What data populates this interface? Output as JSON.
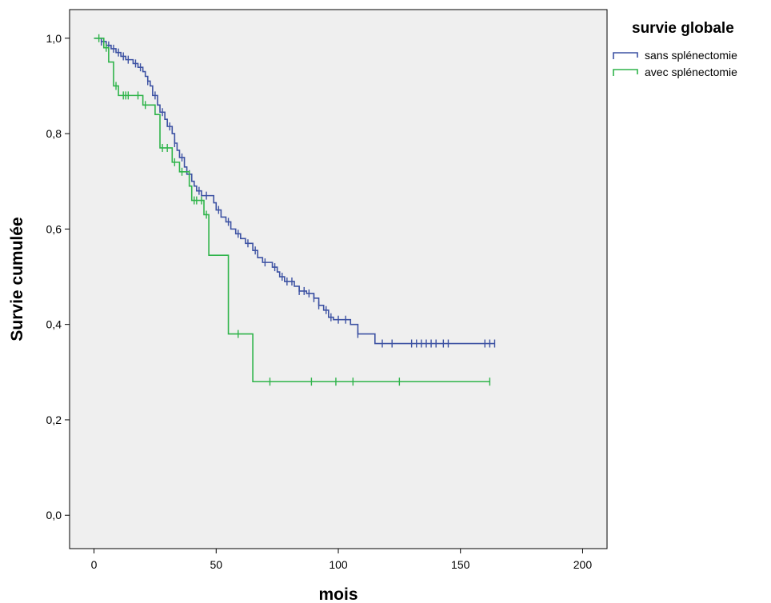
{
  "chart_data": {
    "type": "line",
    "title": "",
    "xlabel": "mois",
    "ylabel": "Survie cumulée",
    "xlim": [
      -10,
      210
    ],
    "ylim": [
      -0.07,
      1.06
    ],
    "x_ticks": [
      0,
      50,
      100,
      150,
      200
    ],
    "x_tick_labels": [
      "0",
      "50",
      "100",
      "150",
      "200"
    ],
    "y_ticks": [
      0.0,
      0.2,
      0.4,
      0.6,
      0.8,
      1.0
    ],
    "y_tick_labels": [
      "0,0",
      "0,2",
      "0,4",
      "0,6",
      "0,8",
      "1,0"
    ],
    "grid": false,
    "background": "#efefef",
    "legend": {
      "title": "survie globale",
      "position": "top-right, outside plot"
    },
    "series": [
      {
        "name": "sans splénectomie",
        "color": "#3d52a3",
        "steps": [
          [
            0,
            1.0
          ],
          [
            3,
            0.993
          ],
          [
            5,
            0.985
          ],
          [
            7,
            0.978
          ],
          [
            9,
            0.97
          ],
          [
            11,
            0.962
          ],
          [
            13,
            0.955
          ],
          [
            16,
            0.947
          ],
          [
            18,
            0.939
          ],
          [
            20,
            0.93
          ],
          [
            21,
            0.92
          ],
          [
            22,
            0.91
          ],
          [
            23,
            0.9
          ],
          [
            24,
            0.88
          ],
          [
            26,
            0.86
          ],
          [
            27,
            0.845
          ],
          [
            29,
            0.83
          ],
          [
            30,
            0.815
          ],
          [
            32,
            0.8
          ],
          [
            33,
            0.78
          ],
          [
            34,
            0.765
          ],
          [
            35,
            0.75
          ],
          [
            37,
            0.73
          ],
          [
            38,
            0.715
          ],
          [
            40,
            0.7
          ],
          [
            41,
            0.69
          ],
          [
            42,
            0.68
          ],
          [
            44,
            0.67
          ],
          [
            49,
            0.655
          ],
          [
            50,
            0.64
          ],
          [
            52,
            0.625
          ],
          [
            54,
            0.615
          ],
          [
            56,
            0.6
          ],
          [
            58,
            0.59
          ],
          [
            60,
            0.58
          ],
          [
            62,
            0.57
          ],
          [
            65,
            0.555
          ],
          [
            67,
            0.54
          ],
          [
            69,
            0.53
          ],
          [
            73,
            0.52
          ],
          [
            75,
            0.51
          ],
          [
            76,
            0.5
          ],
          [
            78,
            0.49
          ],
          [
            82,
            0.48
          ],
          [
            84,
            0.47
          ],
          [
            87,
            0.465
          ],
          [
            90,
            0.455
          ],
          [
            92,
            0.44
          ],
          [
            94,
            0.43
          ],
          [
            96,
            0.415
          ],
          [
            98,
            0.41
          ],
          [
            105,
            0.4
          ],
          [
            108,
            0.38
          ],
          [
            115,
            0.36
          ],
          [
            164,
            0.36
          ]
        ],
        "censored_x": [
          3,
          6,
          8,
          10,
          12,
          14,
          17,
          19,
          22,
          25,
          28,
          31,
          33,
          36,
          39,
          43,
          46,
          51,
          55,
          59,
          63,
          66,
          70,
          74,
          77,
          79,
          81,
          84,
          86,
          88,
          90,
          92,
          95,
          97,
          100,
          103,
          108,
          118,
          122,
          130,
          132,
          134,
          136,
          138,
          140,
          143,
          145,
          160,
          162,
          164
        ]
      },
      {
        "name": "avec splénectomie",
        "color": "#2fb44a",
        "steps": [
          [
            0,
            1.0
          ],
          [
            4,
            0.98
          ],
          [
            6,
            0.95
          ],
          [
            8,
            0.9
          ],
          [
            10,
            0.88
          ],
          [
            20,
            0.86
          ],
          [
            25,
            0.84
          ],
          [
            27,
            0.77
          ],
          [
            32,
            0.74
          ],
          [
            35,
            0.72
          ],
          [
            39,
            0.69
          ],
          [
            40,
            0.66
          ],
          [
            45,
            0.63
          ],
          [
            47,
            0.545
          ],
          [
            55,
            0.38
          ],
          [
            65,
            0.28
          ],
          [
            162,
            0.28
          ]
        ],
        "censored_x": [
          2,
          5,
          9,
          12,
          13,
          14,
          18,
          21,
          28,
          30,
          33,
          36,
          41,
          42,
          44,
          46,
          59,
          72,
          89,
          99,
          106,
          125,
          162
        ]
      }
    ]
  }
}
